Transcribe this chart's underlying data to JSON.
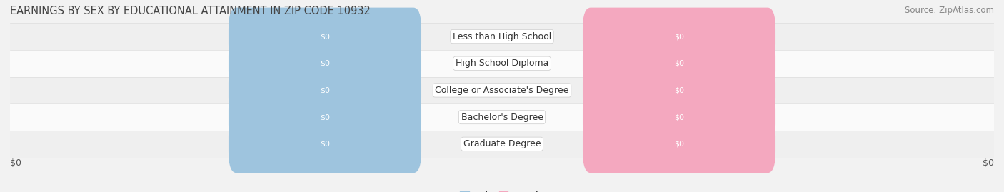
{
  "title": "EARNINGS BY SEX BY EDUCATIONAL ATTAINMENT IN ZIP CODE 10932",
  "source": "Source: ZipAtlas.com",
  "categories": [
    "Less than High School",
    "High School Diploma",
    "College or Associate's Degree",
    "Bachelor's Degree",
    "Graduate Degree"
  ],
  "male_values": [
    0,
    0,
    0,
    0,
    0
  ],
  "female_values": [
    0,
    0,
    0,
    0,
    0
  ],
  "male_color": "#9ec4de",
  "female_color": "#f4a8bf",
  "background_color": "#f2f2f2",
  "row_color_light": "#fafafa",
  "row_color_dark": "#efefef",
  "xlabel_left": "$0",
  "xlabel_right": "$0",
  "title_fontsize": 10.5,
  "source_fontsize": 8.5,
  "tick_fontsize": 9,
  "bar_label_fontsize": 8,
  "cat_label_fontsize": 9,
  "legend_fontsize": 9
}
